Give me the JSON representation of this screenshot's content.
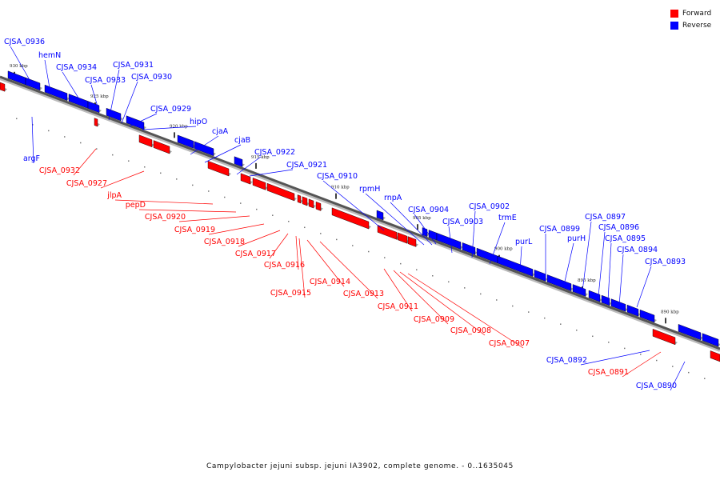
{
  "legend": {
    "forward_label": "Forward",
    "reverse_label": "Reverse",
    "forward_color": "#ff0000",
    "reverse_color": "#0000ff"
  },
  "caption": "Campylobacter jejuni subsp. jejuni IA3902, complete genome. - 0..1635045",
  "ticks": [
    "930 kbp",
    "925 kbp",
    "920 kbp",
    "915 kbp",
    "910 kbp",
    "905 kbp",
    "900 kbp",
    "895 kbp",
    "890 kbp"
  ],
  "genes": [
    {
      "name": "CJSA_0936",
      "strand": "reverse"
    },
    {
      "name": "hemN",
      "strand": "reverse"
    },
    {
      "name": "CJSA_0934",
      "strand": "reverse"
    },
    {
      "name": "CJSA_0933",
      "strand": "reverse"
    },
    {
      "name": "CJSA_0931",
      "strand": "reverse"
    },
    {
      "name": "CJSA_0930",
      "strand": "reverse"
    },
    {
      "name": "CJSA_0929",
      "strand": "reverse"
    },
    {
      "name": "hipO",
      "strand": "reverse"
    },
    {
      "name": "cjaA",
      "strand": "reverse"
    },
    {
      "name": "cjaB",
      "strand": "reverse"
    },
    {
      "name": "CJSA_0922",
      "strand": "reverse"
    },
    {
      "name": "CJSA_0921",
      "strand": "reverse"
    },
    {
      "name": "CJSA_0910",
      "strand": "reverse"
    },
    {
      "name": "rpmH",
      "strand": "reverse"
    },
    {
      "name": "rnpA",
      "strand": "reverse"
    },
    {
      "name": "CJSA_0904",
      "strand": "reverse"
    },
    {
      "name": "CJSA_0903",
      "strand": "reverse"
    },
    {
      "name": "CJSA_0902",
      "strand": "reverse"
    },
    {
      "name": "trmE",
      "strand": "reverse"
    },
    {
      "name": "purL",
      "strand": "reverse"
    },
    {
      "name": "CJSA_0899",
      "strand": "reverse"
    },
    {
      "name": "purH",
      "strand": "reverse"
    },
    {
      "name": "CJSA_0897",
      "strand": "reverse"
    },
    {
      "name": "CJSA_0896",
      "strand": "reverse"
    },
    {
      "name": "CJSA_0895",
      "strand": "reverse"
    },
    {
      "name": "CJSA_0894",
      "strand": "reverse"
    },
    {
      "name": "CJSA_0893",
      "strand": "reverse"
    },
    {
      "name": "argF",
      "strand": "reverse"
    },
    {
      "name": "CJSA_0892",
      "strand": "reverse"
    },
    {
      "name": "CJSA_0890",
      "strand": "reverse"
    },
    {
      "name": "CJSA_0932",
      "strand": "forward"
    },
    {
      "name": "CJSA_0927",
      "strand": "forward"
    },
    {
      "name": "jlpA",
      "strand": "forward"
    },
    {
      "name": "pepD",
      "strand": "forward"
    },
    {
      "name": "CJSA_0920",
      "strand": "forward"
    },
    {
      "name": "CJSA_0919",
      "strand": "forward"
    },
    {
      "name": "CJSA_0918",
      "strand": "forward"
    },
    {
      "name": "CJSA_0917",
      "strand": "forward"
    },
    {
      "name": "CJSA_0916",
      "strand": "forward"
    },
    {
      "name": "CJSA_0915",
      "strand": "forward"
    },
    {
      "name": "CJSA_0914",
      "strand": "forward"
    },
    {
      "name": "CJSA_0913",
      "strand": "forward"
    },
    {
      "name": "CJSA_0911",
      "strand": "forward"
    },
    {
      "name": "CJSA_0909",
      "strand": "forward"
    },
    {
      "name": "CJSA_0908",
      "strand": "forward"
    },
    {
      "name": "CJSA_0907",
      "strand": "forward"
    },
    {
      "name": "CJSA_0891",
      "strand": "forward"
    }
  ]
}
